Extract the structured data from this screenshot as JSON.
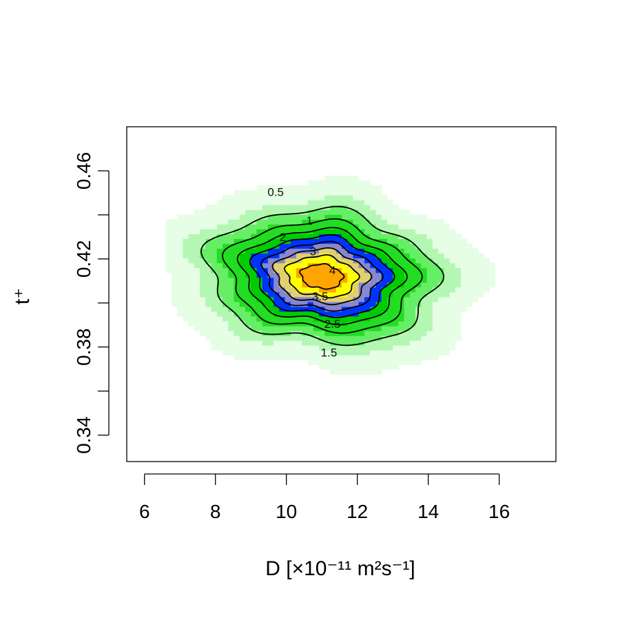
{
  "chart_data": {
    "type": "heatmap",
    "xlabel": "D [×10⁻¹¹ m²s⁻¹]",
    "ylabel": "t⁺",
    "xlim": [
      5.5,
      17.6
    ],
    "ylim": [
      0.328,
      0.48
    ],
    "x_ticks": [
      6,
      8,
      10,
      12,
      14,
      16
    ],
    "y_ticks": [
      0.34,
      0.36,
      0.38,
      0.4,
      0.42,
      0.44,
      0.46
    ],
    "y_tick_labels": [
      "0.34",
      "",
      "0.38",
      "",
      "0.42",
      "",
      "0.46"
    ],
    "density_peak": {
      "x": 11.0,
      "y": 0.412,
      "value": 4.3
    },
    "contour_levels": [
      0.5,
      1,
      1.5,
      2,
      2.5,
      3,
      3.5,
      4
    ],
    "contour_labels": [
      {
        "text": "0.5",
        "x": 9.7,
        "y": 0.4505
      },
      {
        "text": "1",
        "x": 10.65,
        "y": 0.4375
      },
      {
        "text": "2",
        "x": 9.9,
        "y": 0.43
      },
      {
        "text": "3",
        "x": 10.75,
        "y": 0.4235
      },
      {
        "text": "4",
        "x": 11.3,
        "y": 0.415
      },
      {
        "text": "3.5",
        "x": 10.95,
        "y": 0.403
      },
      {
        "text": "2.5",
        "x": 11.3,
        "y": 0.3905
      },
      {
        "text": "1.5",
        "x": 11.2,
        "y": 0.3775
      }
    ],
    "color_scale": [
      "#e6fde6",
      "#b3f7b3",
      "#66ee66",
      "#22dd22",
      "#00cc00",
      "#0033ff",
      "#8888cc",
      "#e0d070",
      "#ffff00",
      "#ffa500",
      "#ff0000"
    ],
    "grid": false,
    "legend": "none"
  }
}
